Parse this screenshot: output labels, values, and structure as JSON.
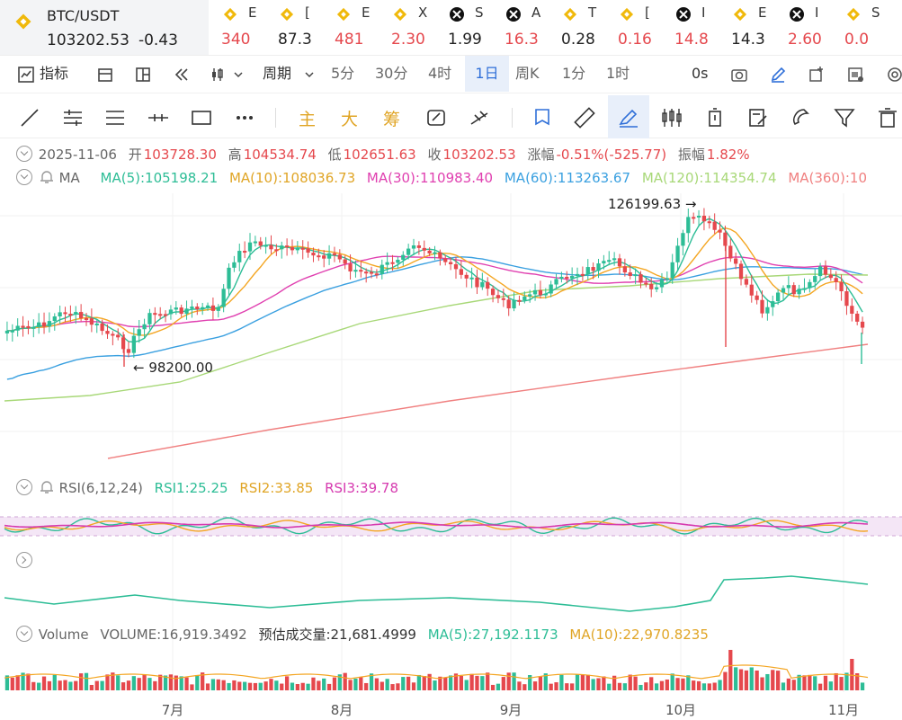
{
  "pair": {
    "symbol": "BTC/USDT",
    "price": "103202.53",
    "change": "-0.43"
  },
  "tickers": [
    {
      "icon": "bnb",
      "name": "E",
      "value": "340",
      "color": "#e5484d"
    },
    {
      "icon": "bnb",
      "name": "[",
      "value": "87.3",
      "color": "#222"
    },
    {
      "icon": "bnb",
      "name": "E",
      "value": "481",
      "color": "#e5484d"
    },
    {
      "icon": "bnb",
      "name": "X",
      "value": "2.30",
      "color": "#e5484d"
    },
    {
      "icon": "ticker",
      "name": "S",
      "value": "1.99",
      "color": "#222"
    },
    {
      "icon": "ticker",
      "name": "A",
      "value": "16.3",
      "color": "#e5484d"
    },
    {
      "icon": "bnb",
      "name": "T",
      "value": "0.28",
      "color": "#222"
    },
    {
      "icon": "bnb",
      "name": "[",
      "value": "0.16",
      "color": "#e5484d"
    },
    {
      "icon": "ticker",
      "name": "I",
      "value": "14.8",
      "color": "#e5484d"
    },
    {
      "icon": "bnb",
      "name": "E",
      "value": "14.3",
      "color": "#222"
    },
    {
      "icon": "ticker",
      "name": "I",
      "value": "2.60",
      "color": "#e5484d"
    },
    {
      "icon": "bnb",
      "name": "S",
      "value": "0.0",
      "color": "#e5484d"
    },
    {
      "icon": "bnb",
      "name": "",
      "value": "(",
      "color": "#16a34a"
    }
  ],
  "toolbar": {
    "indicator": "指标",
    "period": "周期",
    "intervals": [
      "5分",
      "30分",
      "4时",
      "1日",
      "周K",
      "1分",
      "1时"
    ],
    "selected": "1日",
    "countdown": "0s"
  },
  "drawbar": {
    "main": "主",
    "large": "大",
    "chip": "筹"
  },
  "ohlc": {
    "date": "2025-11-06",
    "open_label": "开",
    "open": "103728.30",
    "high_label": "高",
    "high": "104534.74",
    "low_label": "低",
    "low": "102651.63",
    "close_label": "收",
    "close": "103202.53",
    "chg_label": "涨幅",
    "chg": "-0.51%(-525.77)",
    "amp_label": "振幅",
    "amp": "1.82%"
  },
  "ma": {
    "label": "MA",
    "ma5": "MA(5):105198.21",
    "ma10": "MA(10):108036.73",
    "ma30": "MA(30):110983.40",
    "ma60": "MA(60):113263.67",
    "ma120": "MA(120):114354.74",
    "ma360": "MA(360):10"
  },
  "annotations": {
    "high": "126199.63",
    "low": "98200.00"
  },
  "rsi": {
    "label": "RSI(6,12,24)",
    "rsi1": "RSI1:25.25",
    "rsi2": "RSI2:33.85",
    "rsi3": "RSI3:39.78"
  },
  "volume": {
    "label": "Volume",
    "vol": "VOLUME:16,919.3492",
    "est": "预估成交量:21,681.4999",
    "ma5": "MA(5):27,192.1173",
    "ma10": "MA(10):22,970.8235"
  },
  "months": [
    "7月",
    "8月",
    "9月",
    "10月",
    "11月"
  ],
  "colors": {
    "up": "#2dbd96",
    "down": "#e5484d",
    "ma5": "#2dbd96",
    "ma10": "#f4a623",
    "ma30": "#e040b0",
    "ma60": "#3aa0e0",
    "ma120": "#a8d878",
    "ma360": "#f08080",
    "rsi3": "#d63bb0",
    "accent": "#2f6fd8",
    "gold": "#e0a526"
  }
}
